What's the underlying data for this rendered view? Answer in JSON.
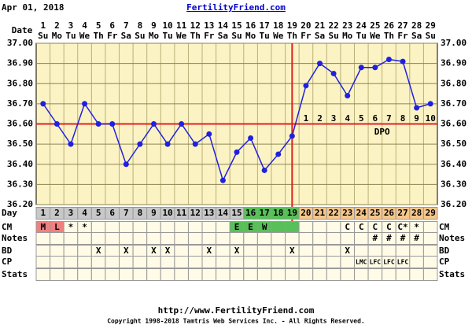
{
  "header": {
    "date": "Apr 01, 2018",
    "site": "FertilityFriend.com"
  },
  "chart_data": {
    "type": "line",
    "row_label": "Date",
    "x": [
      1,
      2,
      3,
      4,
      5,
      6,
      7,
      8,
      9,
      10,
      11,
      12,
      13,
      14,
      15,
      16,
      17,
      18,
      19,
      20,
      21,
      22,
      23,
      24,
      25,
      26,
      27,
      28,
      29
    ],
    "weekdays": [
      "Su",
      "Mo",
      "Tu",
      "We",
      "Th",
      "Fr",
      "Sa",
      "Su",
      "Mo",
      "Tu",
      "We",
      "Th",
      "Fr",
      "Sa",
      "Su",
      "Mo",
      "Tu",
      "We",
      "Th",
      "Fr",
      "Sa",
      "Su",
      "Mo",
      "Tu",
      "We",
      "Th",
      "Fr",
      "Sa",
      "Su"
    ],
    "values": [
      36.7,
      36.6,
      36.5,
      36.7,
      36.6,
      36.6,
      36.4,
      36.5,
      36.6,
      36.5,
      36.6,
      36.5,
      36.55,
      36.32,
      36.46,
      36.53,
      36.37,
      36.45,
      36.54,
      36.79,
      36.9,
      36.85,
      36.74,
      36.88,
      36.88,
      36.92,
      36.91,
      36.68,
      36.7
    ],
    "color": "#2020e0",
    "xlim": [
      0.5,
      29.5
    ],
    "ylim": [
      36.2,
      37.0
    ],
    "yticks": [
      {
        "value": 36.2,
        "label": "36.20"
      },
      {
        "value": 36.3,
        "label": "36.30"
      },
      {
        "value": 36.4,
        "label": "36.40"
      },
      {
        "value": 36.5,
        "label": "36.50"
      },
      {
        "value": 36.6,
        "label": "36.60"
      },
      {
        "value": 36.7,
        "label": "36.70"
      },
      {
        "value": 36.8,
        "label": "36.80"
      },
      {
        "value": 36.9,
        "label": "36.90"
      },
      {
        "value": 37.0,
        "label": "37.00"
      }
    ],
    "grid": true,
    "coverline": 36.6,
    "ovulation_day": 19,
    "line_color": "#e02020",
    "dpo": {
      "label": "DPO",
      "days": [
        20,
        21,
        22,
        23,
        24,
        25,
        26,
        27,
        28,
        29
      ],
      "values": [
        1,
        2,
        3,
        4,
        5,
        6,
        7,
        8,
        9,
        10
      ]
    }
  },
  "table": {
    "row_labels": [
      "Day",
      "CM",
      "Notes",
      "BD",
      "CP",
      "Stats"
    ],
    "day_fill": [
      "#c8c8c8",
      "#c8c8c8",
      "#c8c8c8",
      "#c8c8c8",
      "#c8c8c8",
      "#c8c8c8",
      "#c8c8c8",
      "#c8c8c8",
      "#c8c8c8",
      "#c8c8c8",
      "#c8c8c8",
      "#c8c8c8",
      "#c8c8c8",
      "#c8c8c8",
      "#c8c8c8",
      "#58c058",
      "#58c058",
      "#58c058",
      "#58c058",
      "#f6c68a",
      "#f6c68a",
      "#f6c68a",
      "#f6c68a",
      "#f6c68a",
      "#f6c68a",
      "#f6c68a",
      "#f6c68a",
      "#f6c68a",
      "#f6c68a"
    ],
    "cm": [
      "M",
      "L",
      "*",
      "*",
      null,
      null,
      null,
      null,
      null,
      null,
      null,
      null,
      null,
      null,
      "E",
      "E",
      "W",
      null,
      null,
      null,
      null,
      null,
      "C",
      "C",
      "C",
      "C",
      "C*",
      "*",
      null
    ],
    "cm_fill": [
      "#f08080",
      "#f08080",
      null,
      null,
      null,
      null,
      null,
      null,
      null,
      null,
      null,
      null,
      null,
      null,
      "#58c058",
      "#58c058",
      "#58c058",
      "#58c058",
      "#58c058",
      null,
      null,
      null,
      null,
      null,
      null,
      null,
      null,
      null,
      null
    ],
    "notes": [
      null,
      null,
      null,
      null,
      null,
      null,
      null,
      null,
      null,
      null,
      null,
      null,
      null,
      null,
      null,
      null,
      null,
      null,
      null,
      null,
      null,
      null,
      null,
      null,
      "#",
      "#",
      "#",
      "#",
      null
    ],
    "bd": [
      null,
      null,
      null,
      null,
      "X",
      null,
      "X",
      null,
      "X",
      "X",
      null,
      null,
      "X",
      null,
      "X",
      null,
      null,
      null,
      "X",
      null,
      null,
      null,
      "X",
      null,
      null,
      null,
      null,
      null,
      null
    ],
    "cp": [
      null,
      null,
      null,
      null,
      null,
      null,
      null,
      null,
      null,
      null,
      null,
      null,
      null,
      null,
      null,
      null,
      null,
      null,
      null,
      null,
      null,
      null,
      null,
      "LMC",
      "LFC",
      "LFC",
      "LFC",
      null,
      null
    ]
  },
  "footer": {
    "url": "http://www.FertilityFriend.com",
    "copyright": "Copyright 1998-2018 Tamtris Web Services Inc. - All Rights Reserved."
  }
}
